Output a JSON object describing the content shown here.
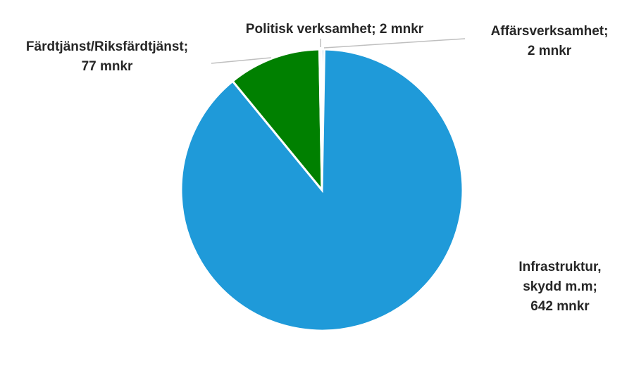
{
  "chart_data": {
    "type": "pie",
    "title": "",
    "start_angle_deg": 0,
    "direction": "clockwise",
    "slices": [
      {
        "label_lines": [
          "Affärsverksamhet;",
          "2 mnkr"
        ],
        "value": 2,
        "unit": "mnkr",
        "color": "#1f7fc4"
      },
      {
        "label_lines": [
          "Infrastruktur,",
          "skydd m.m;",
          "642 mnkr"
        ],
        "value": 642,
        "unit": "mnkr",
        "color": "#1f9ad9"
      },
      {
        "label_lines": [
          "Färdtjänst/Riksfärdtjänst;",
          "77 mnkr"
        ],
        "value": 77,
        "unit": "mnkr",
        "color": "#008000"
      },
      {
        "label_lines": [
          "Politisk verksamhet; 2 mnkr"
        ],
        "value": 2,
        "unit": "mnkr",
        "color": "#e8e8e8"
      }
    ]
  }
}
